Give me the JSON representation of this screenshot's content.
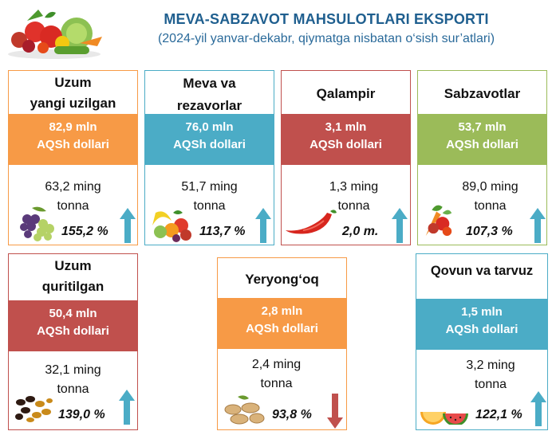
{
  "header": {
    "title": "MEVA-SABZAVOT MAHSULOTLARI EKSPORTI",
    "subtitle": "(2024-yil yanvar-dekabr, qiymatga nisbatan o‘sish sur’atlari)"
  },
  "colors": {
    "orange": "#f79a46",
    "teal": "#4bacc6",
    "red": "#c0504d",
    "green": "#9bbb59",
    "arrow_up": "#4bacc6",
    "arrow_down": "#c0504d"
  },
  "cards": {
    "uzum_yangi": {
      "name_line1": "Uzum",
      "name_line2": "yangi uzilgan",
      "value_line1": "82,9 mln",
      "value_line2": "AQSh dollari",
      "volume_line1": "63,2 ming",
      "volume_line2": "tonna",
      "growth": "155,2 %",
      "icon": "grapes-icon",
      "trend": "up"
    },
    "meva_rezavor": {
      "name_line1": "Meva va",
      "name_line2": "rezavorlar",
      "value_line1": "76,0 mln",
      "value_line2": "AQSh dollari",
      "volume_line1": "51,7 ming",
      "volume_line2": "tonna",
      "growth": "113,7 %",
      "icon": "fruit-basket-icon",
      "trend": "up"
    },
    "qalampir": {
      "name_line1": "Qalampir",
      "value_line1": "3,1 mln",
      "value_line2": "AQSh dollari",
      "volume_line1": "1,3 ming",
      "volume_line2": "tonna",
      "growth": "2,0 m.",
      "icon": "chili-pepper-icon",
      "trend": "up"
    },
    "sabzavotlar": {
      "name_line1": "Sabzavotlar",
      "value_line1": "53,7 mln",
      "value_line2": "AQSh dollari",
      "volume_line1": "89,0 ming",
      "volume_line2": "tonna",
      "growth": "107,3 %",
      "icon": "vegetables-icon",
      "trend": "up"
    },
    "uzum_quritilgan": {
      "name_line1": "Uzum",
      "name_line2": "quritilgan",
      "value_line1": "50,4 mln",
      "value_line2": "AQSh dollari",
      "volume_line1": "32,1 ming",
      "volume_line2": "tonna",
      "growth": "139,0 %",
      "icon": "raisins-icon",
      "trend": "up"
    },
    "yeryongoq": {
      "name_line1": "Yeryong‘oq",
      "value_line1": "2,8 mln",
      "value_line2": "AQSh dollari",
      "volume_line1": "2,4 ming",
      "volume_line2": "tonna",
      "growth": "93,8 %",
      "icon": "peanuts-icon",
      "trend": "down"
    },
    "qovun_tarvuz": {
      "name_line1": "Qovun va tarvuz",
      "value_line1": "1,5 mln",
      "value_line2": "AQSh dollari",
      "volume_line1": "3,2 ming",
      "volume_line2": "tonna",
      "growth": "122,1 %",
      "icon": "melon-watermelon-icon",
      "trend": "up"
    }
  }
}
